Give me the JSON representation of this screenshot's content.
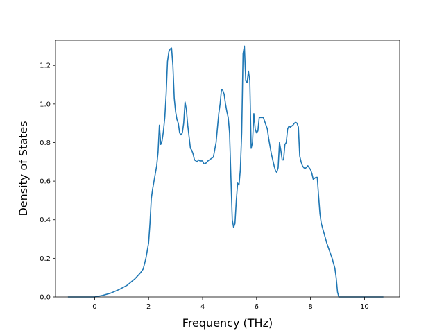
{
  "chart_data": {
    "type": "line",
    "title": "",
    "xlabel": "Frequency (THz)",
    "ylabel": "Density of States",
    "xlim": [
      -1.45,
      11.3
    ],
    "ylim": [
      0.0,
      1.3302
    ],
    "xticks": [
      0,
      2,
      4,
      6,
      8,
      10
    ],
    "yticks": [
      0.0,
      0.2,
      0.4,
      0.6,
      0.8,
      1.0,
      1.2
    ],
    "xtick_labels": [
      "0",
      "2",
      "4",
      "6",
      "8",
      "10"
    ],
    "ytick_labels": [
      "0.0",
      "0.2",
      "0.4",
      "0.6",
      "0.8",
      "1.0",
      "1.2"
    ],
    "grid": false,
    "legend": "none",
    "series": [
      {
        "color": "#1f77b4",
        "x": [
          -0.99,
          0.0,
          0.3,
          0.6,
          0.9,
          1.2,
          1.5,
          1.7,
          1.8,
          1.9,
          2.0,
          2.05,
          2.1,
          2.15,
          2.2,
          2.3,
          2.35,
          2.4,
          2.45,
          2.5,
          2.55,
          2.6,
          2.65,
          2.7,
          2.75,
          2.8,
          2.85,
          2.9,
          2.95,
          3.0,
          3.05,
          3.1,
          3.15,
          3.2,
          3.25,
          3.3,
          3.35,
          3.4,
          3.45,
          3.5,
          3.55,
          3.6,
          3.65,
          3.7,
          3.75,
          3.8,
          3.85,
          3.9,
          4.0,
          4.05,
          4.1,
          4.2,
          4.3,
          4.4,
          4.5,
          4.6,
          4.65,
          4.7,
          4.75,
          4.8,
          4.85,
          4.9,
          4.95,
          5.0,
          5.05,
          5.1,
          5.15,
          5.2,
          5.25,
          5.3,
          5.35,
          5.4,
          5.45,
          5.5,
          5.55,
          5.6,
          5.65,
          5.7,
          5.75,
          5.8,
          5.85,
          5.9,
          5.95,
          6.0,
          6.05,
          6.1,
          6.15,
          6.2,
          6.25,
          6.3,
          6.35,
          6.4,
          6.45,
          6.5,
          6.55,
          6.6,
          6.65,
          6.7,
          6.75,
          6.8,
          6.85,
          6.9,
          6.95,
          7.0,
          7.05,
          7.1,
          7.15,
          7.2,
          7.25,
          7.3,
          7.35,
          7.4,
          7.45,
          7.5,
          7.55,
          7.6,
          7.65,
          7.7,
          7.75,
          7.8,
          7.9,
          8.0,
          8.05,
          8.1,
          8.15,
          8.2,
          8.25,
          8.3,
          8.35,
          8.4,
          8.5,
          8.6,
          8.7,
          8.8,
          8.9,
          8.95,
          9.0,
          9.05,
          9.1,
          9.2,
          9.3,
          9.4,
          9.5,
          9.6,
          9.65,
          9.7,
          9.8,
          9.9,
          10.0,
          10.7
        ],
        "y": [
          0.0,
          0.0,
          0.008,
          0.02,
          0.038,
          0.06,
          0.095,
          0.125,
          0.145,
          0.2,
          0.28,
          0.38,
          0.51,
          0.56,
          0.6,
          0.68,
          0.75,
          0.89,
          0.79,
          0.81,
          0.86,
          0.93,
          1.05,
          1.22,
          1.27,
          1.285,
          1.29,
          1.2,
          1.03,
          0.96,
          0.92,
          0.9,
          0.85,
          0.84,
          0.85,
          0.9,
          1.01,
          0.97,
          0.89,
          0.83,
          0.77,
          0.76,
          0.74,
          0.71,
          0.705,
          0.7,
          0.71,
          0.705,
          0.705,
          0.69,
          0.69,
          0.705,
          0.715,
          0.725,
          0.8,
          0.95,
          1.0,
          1.075,
          1.07,
          1.05,
          1.0,
          0.96,
          0.93,
          0.85,
          0.62,
          0.4,
          0.36,
          0.38,
          0.5,
          0.59,
          0.58,
          0.66,
          0.85,
          1.26,
          1.3,
          1.12,
          1.11,
          1.17,
          1.12,
          0.77,
          0.8,
          0.95,
          0.87,
          0.85,
          0.86,
          0.93,
          0.93,
          0.93,
          0.93,
          0.91,
          0.89,
          0.87,
          0.82,
          0.78,
          0.74,
          0.71,
          0.68,
          0.655,
          0.645,
          0.67,
          0.8,
          0.76,
          0.71,
          0.71,
          0.79,
          0.8,
          0.87,
          0.885,
          0.88,
          0.885,
          0.89,
          0.9,
          0.905,
          0.9,
          0.88,
          0.73,
          0.7,
          0.68,
          0.67,
          0.665,
          0.68,
          0.66,
          0.64,
          0.61,
          0.615,
          0.62,
          0.62,
          0.52,
          0.43,
          0.38,
          0.33,
          0.28,
          0.24,
          0.2,
          0.15,
          0.1,
          0.025,
          0.0,
          0.0,
          0.0,
          0.0,
          0.0,
          0.0,
          0.0,
          0.0,
          0.0,
          0.0,
          0.0,
          0.0,
          0.0
        ]
      }
    ]
  }
}
